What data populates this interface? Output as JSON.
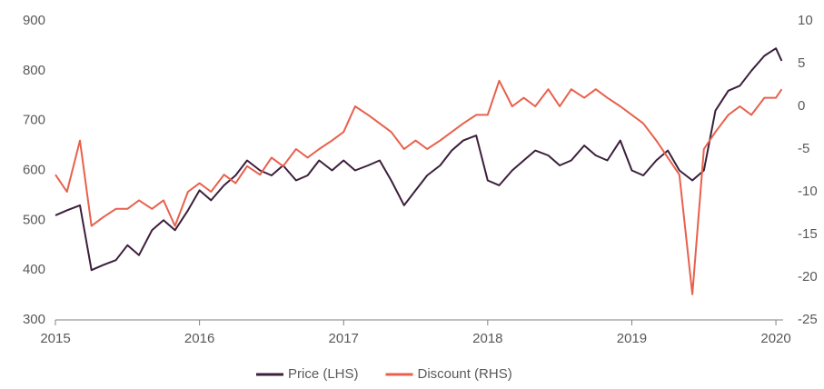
{
  "chart_data": {
    "type": "line",
    "x": [
      2015,
      2015.08,
      2015.17,
      2015.25,
      2015.33,
      2015.42,
      2015.5,
      2015.58,
      2015.67,
      2015.75,
      2015.83,
      2015.92,
      2016,
      2016.08,
      2016.17,
      2016.25,
      2016.33,
      2016.42,
      2016.5,
      2016.58,
      2016.67,
      2016.75,
      2016.83,
      2016.92,
      2017,
      2017.08,
      2017.17,
      2017.25,
      2017.33,
      2017.42,
      2017.5,
      2017.58,
      2017.67,
      2017.75,
      2017.83,
      2017.92,
      2018,
      2018.08,
      2018.17,
      2018.25,
      2018.33,
      2018.42,
      2018.5,
      2018.58,
      2018.67,
      2018.75,
      2018.83,
      2018.92,
      2019,
      2019.08,
      2019.17,
      2019.25,
      2019.33,
      2019.42,
      2019.5,
      2019.58,
      2019.67,
      2019.75,
      2019.83,
      2019.92,
      2020,
      2020.04
    ],
    "series": [
      {
        "name": "Price (LHS)",
        "color": "#3b1f3b",
        "axis": "y",
        "values": [
          510,
          520,
          530,
          400,
          410,
          420,
          450,
          430,
          480,
          500,
          480,
          520,
          560,
          540,
          570,
          590,
          620,
          600,
          590,
          610,
          580,
          590,
          620,
          600,
          620,
          600,
          610,
          620,
          580,
          530,
          560,
          590,
          610,
          640,
          660,
          670,
          580,
          570,
          600,
          620,
          640,
          630,
          610,
          620,
          650,
          630,
          620,
          660,
          600,
          590,
          620,
          640,
          600,
          580,
          600,
          720,
          760,
          770,
          800,
          830,
          845,
          820
        ]
      },
      {
        "name": "Discount (RHS)",
        "color": "#e8604c",
        "axis": "y2",
        "values": [
          -8,
          -10,
          -4,
          -14,
          -13,
          -12,
          -12,
          -11,
          -12,
          -11,
          -14,
          -10,
          -9,
          -10,
          -8,
          -9,
          -7,
          -8,
          -6,
          -7,
          -5,
          -6,
          -5,
          -4,
          -3,
          0,
          -1,
          -2,
          -3,
          -5,
          -4,
          -5,
          -4,
          -3,
          -2,
          -1,
          -1,
          3,
          0,
          1,
          0,
          2,
          0,
          2,
          1,
          2,
          1,
          0,
          -1,
          -2,
          -4,
          -6,
          -8,
          -22,
          -5,
          -3,
          -1,
          0,
          -1,
          1,
          1,
          2
        ]
      }
    ],
    "xlim": [
      2015,
      2020.05
    ],
    "xticks": [
      2015,
      2016,
      2017,
      2018,
      2019,
      2020
    ],
    "ylim": [
      300,
      900
    ],
    "yticks": [
      300,
      400,
      500,
      600,
      700,
      800,
      900
    ],
    "y2lim": [
      -25,
      10
    ],
    "y2ticks": [
      -25,
      -20,
      -15,
      -10,
      -5,
      0,
      5,
      10
    ],
    "grid": false,
    "legend": "bottom"
  }
}
